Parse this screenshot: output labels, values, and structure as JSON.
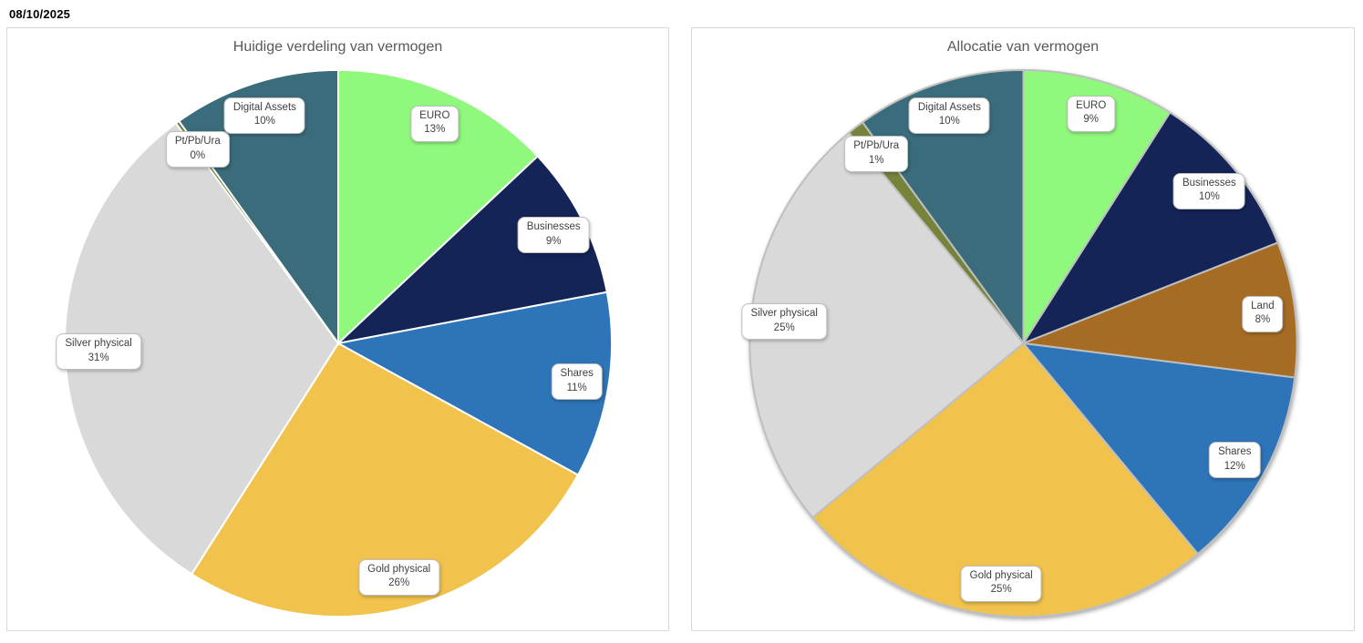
{
  "page": {
    "date": "08/10/2025",
    "background": "#FFFFFF",
    "panel_border_color": "#D9D9D9",
    "title_color": "#595959",
    "label_text_color": "#404040"
  },
  "chart_data": [
    {
      "type": "pie",
      "title": "Huidige verdeling van vermogen",
      "start_angle_deg": 0,
      "direction": "clockwise",
      "legend": "none",
      "labels": "inside-callout-boxes",
      "slice_border_color": "#FFFFFF",
      "outer_shadow": false,
      "slices": [
        {
          "label": "EURO",
          "pct": 13,
          "color": "#90F87D"
        },
        {
          "label": "Businesses",
          "pct": 9,
          "color": "#152457"
        },
        {
          "label": "Shares",
          "pct": 11,
          "color": "#2E74B8"
        },
        {
          "label": "Gold physical",
          "pct": 26,
          "color": "#F1C24C"
        },
        {
          "label": "Silver physical",
          "pct": 31,
          "color": "#D9D9D9"
        },
        {
          "label": "Pt/Pb/Ura",
          "pct": 0,
          "color": "#75833B"
        },
        {
          "label": "Digital Assets",
          "pct": 10,
          "color": "#3A6C7B"
        }
      ]
    },
    {
      "type": "pie",
      "title": "Allocatie van vermogen",
      "start_angle_deg": 0,
      "direction": "clockwise",
      "legend": "none",
      "labels": "inside-callout-boxes",
      "slice_border_color": "#BFBFBF",
      "outer_shadow": true,
      "slices": [
        {
          "label": "EURO",
          "pct": 9,
          "color": "#90F87D"
        },
        {
          "label": "Businesses",
          "pct": 10,
          "color": "#152457"
        },
        {
          "label": "Land",
          "pct": 8,
          "color": "#A76C24"
        },
        {
          "label": "Shares",
          "pct": 12,
          "color": "#2E74B8"
        },
        {
          "label": "Gold physical",
          "pct": 25,
          "color": "#F1C24C"
        },
        {
          "label": "Silver physical",
          "pct": 25,
          "color": "#D9D9D9"
        },
        {
          "label": "Pt/Pb/Ura",
          "pct": 1,
          "color": "#75833B"
        },
        {
          "label": "Digital Assets",
          "pct": 10,
          "color": "#3A6C7B"
        }
      ]
    }
  ]
}
